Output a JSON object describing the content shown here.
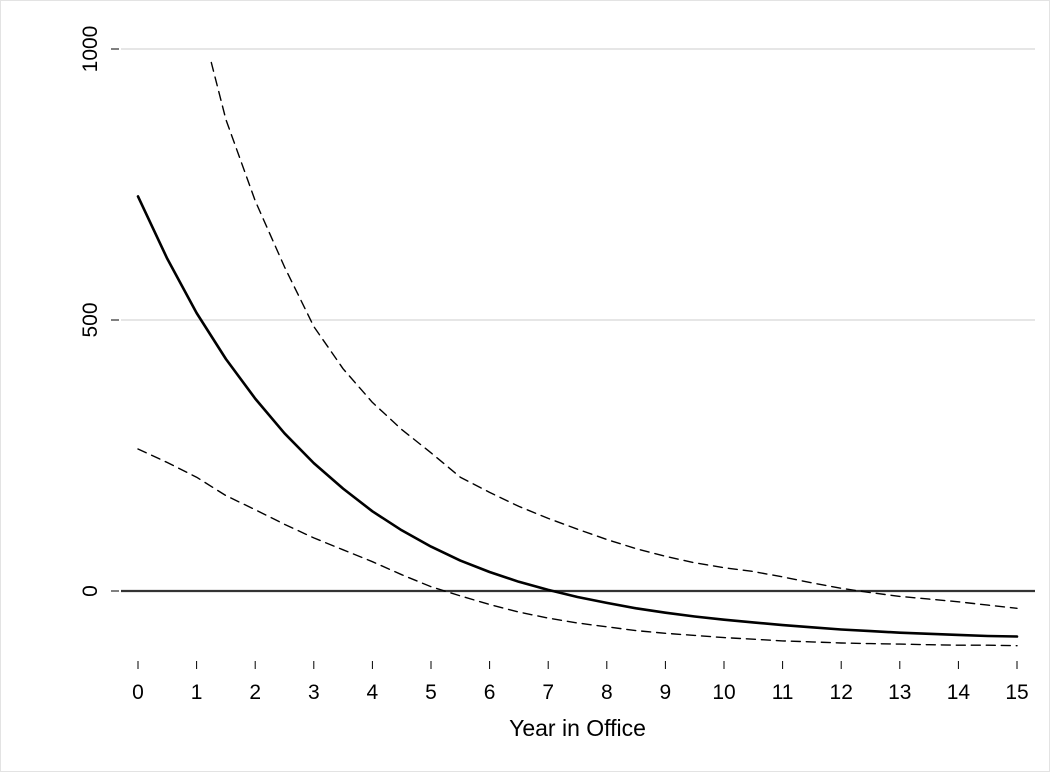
{
  "chart_data": {
    "type": "line",
    "title": "",
    "xlabel": "Year in Office",
    "ylabel": "",
    "xlim": [
      0,
      15
    ],
    "ylim": [
      -120,
      1000
    ],
    "x_ticks": [
      "0",
      "1",
      "2",
      "3",
      "4",
      "5",
      "6",
      "7",
      "8",
      "9",
      "10",
      "11",
      "12",
      "13",
      "14",
      "15"
    ],
    "y_ticks": [
      "0",
      "500",
      "1000"
    ],
    "grid": true,
    "reference_line_y": 0,
    "colors": {
      "estimate": "#000000",
      "ci": "#000000",
      "grid": "#e6e6e6",
      "zero_line": "#333333"
    },
    "series": [
      {
        "style": "solid",
        "x": [
          0,
          0.5,
          1,
          1.5,
          2,
          2.5,
          3,
          3.5,
          4,
          4.5,
          5,
          5.5,
          6,
          6.5,
          7,
          7.5,
          8,
          8.5,
          9,
          9.5,
          10,
          10.5,
          11,
          11.5,
          12,
          12.5,
          13,
          13.5,
          14,
          14.5,
          15
        ],
        "values": [
          728,
          613,
          513,
          428,
          355,
          291,
          236,
          189,
          147,
          112,
          82,
          56,
          35,
          17,
          2,
          -11,
          -22,
          -32,
          -40,
          -47,
          -53,
          -58,
          -63,
          -67,
          -71,
          -74,
          -77,
          -79,
          -81,
          -83,
          -84
        ]
      },
      {
        "style": "dashed",
        "x": [
          0,
          0.5,
          1,
          1.5,
          2,
          2.5,
          3,
          3.5,
          4,
          4.5,
          5,
          5.5,
          6,
          6.5,
          7,
          7.5,
          8,
          8.5,
          9,
          9.5,
          10,
          10.5,
          11,
          11.5,
          12,
          12.5,
          13,
          13.5,
          14,
          14.5,
          15
        ],
        "values": [
          262,
          237,
          210,
          176,
          150,
          123,
          98,
          76,
          54,
          30,
          8,
          -9,
          -25,
          -39,
          -50,
          -59,
          -66,
          -73,
          -78,
          -82,
          -86,
          -89,
          -92,
          -94,
          -96,
          -97,
          -98,
          -99,
          -100,
          -100,
          -101
        ]
      },
      {
        "style": "dashed",
        "x": [
          1.25,
          1.5,
          2,
          2.5,
          3,
          3.5,
          4,
          4.5,
          5,
          5.5,
          6,
          6.5,
          7,
          7.5,
          8,
          8.5,
          9,
          9.5,
          10,
          10.5,
          11,
          11.5,
          12,
          12.5,
          13,
          13.5,
          14,
          14.5,
          15
        ],
        "values": [
          975,
          870,
          720,
          598,
          488,
          410,
          348,
          298,
          255,
          210,
          182,
          156,
          134,
          114,
          95,
          78,
          64,
          52,
          43,
          36,
          26,
          15,
          5,
          -3,
          -10,
          -15,
          -20,
          -26,
          -32
        ]
      }
    ]
  }
}
